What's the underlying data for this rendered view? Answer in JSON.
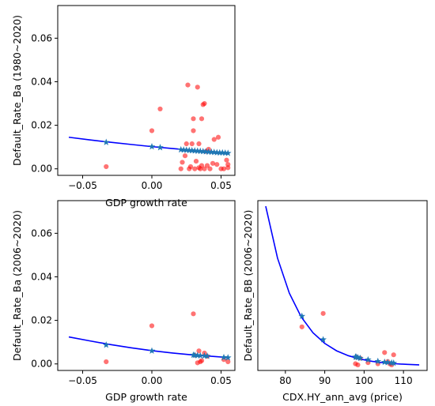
{
  "chart_data": [
    {
      "type": "scatter",
      "xlabel": "GDP growth rate",
      "ylabel": "Default_Rate_Ba (1980~2020)",
      "xlim": [
        -0.068,
        0.06
      ],
      "ylim": [
        -0.003,
        0.075
      ],
      "xticks": [
        -0.05,
        0.0,
        0.05
      ],
      "xticklabels": [
        "−0.05",
        "0.00",
        "0.05"
      ],
      "yticks": [
        0.0,
        0.02,
        0.04,
        0.06
      ],
      "yticklabels": [
        "0.00",
        "0.02",
        "0.04",
        "0.06"
      ],
      "grid": false,
      "series": [
        {
          "kind": "scatter",
          "color": "#ff0000",
          "x": [
            -0.033,
            0.0,
            0.006,
            0.021,
            0.022,
            0.024,
            0.025,
            0.026,
            0.027,
            0.028,
            0.029,
            0.03,
            0.03,
            0.031,
            0.032,
            0.033,
            0.034,
            0.034,
            0.035,
            0.036,
            0.036,
            0.037,
            0.038,
            0.038,
            0.039,
            0.04,
            0.041,
            0.042,
            0.044,
            0.045,
            0.047,
            0.048,
            0.05,
            0.052,
            0.054,
            0.055,
            0.055
          ],
          "y": [
            0.001,
            0.0175,
            0.0275,
            0.0,
            0.003,
            0.006,
            0.0115,
            0.0385,
            0.0,
            0.001,
            0.0115,
            0.023,
            0.0175,
            0.0,
            0.0035,
            0.0375,
            0.0005,
            0.0115,
            0.0,
            0.023,
            0.0015,
            0.0295,
            0.03,
            0.0,
            0.008,
            0.0015,
            0.009,
            0.0,
            0.0025,
            0.0135,
            0.002,
            0.0145,
            0.0,
            0.0,
            0.004,
            0.0005,
            0.002
          ]
        },
        {
          "kind": "line",
          "color": "#0000ff",
          "x": [
            -0.06,
            -0.045,
            -0.03,
            -0.015,
            0.0,
            0.015,
            0.03,
            0.045,
            0.056
          ],
          "y": [
            0.0145,
            0.0133,
            0.0122,
            0.0112,
            0.0102,
            0.0093,
            0.0085,
            0.0078,
            0.0072
          ]
        },
        {
          "kind": "scatter",
          "marker": "star",
          "color": "#1f77b4",
          "x": [
            -0.033,
            0.0,
            0.006,
            0.021,
            0.023,
            0.025,
            0.027,
            0.029,
            0.031,
            0.033,
            0.035,
            0.037,
            0.039,
            0.041,
            0.043,
            0.045,
            0.047,
            0.049,
            0.051,
            0.053,
            0.055
          ],
          "y": [
            0.0122,
            0.0102,
            0.0098,
            0.0088,
            0.0087,
            0.0086,
            0.0085,
            0.0084,
            0.0083,
            0.0082,
            0.0081,
            0.008,
            0.0079,
            0.0078,
            0.0077,
            0.0076,
            0.0075,
            0.0074,
            0.0074,
            0.0073,
            0.0072
          ]
        }
      ]
    },
    {
      "type": "scatter",
      "xlabel": "GDP growth rate",
      "ylabel": "Default_Rate_Ba (2006~2020)",
      "xlim": [
        -0.068,
        0.06
      ],
      "ylim": [
        -0.003,
        0.075
      ],
      "xticks": [
        -0.05,
        0.0,
        0.05
      ],
      "xticklabels": [
        "−0.05",
        "0.00",
        "0.05"
      ],
      "yticks": [
        0.0,
        0.02,
        0.04,
        0.06
      ],
      "yticklabels": [
        "0.00",
        "0.02",
        "0.04",
        "0.06"
      ],
      "grid": false,
      "series": [
        {
          "kind": "scatter",
          "color": "#ff0000",
          "x": [
            -0.033,
            0.0,
            0.03,
            0.031,
            0.033,
            0.034,
            0.035,
            0.036,
            0.038,
            0.04,
            0.052,
            0.055
          ],
          "y": [
            0.001,
            0.0175,
            0.023,
            0.004,
            0.0005,
            0.006,
            0.001,
            0.0015,
            0.005,
            0.0035,
            0.002,
            0.001
          ]
        },
        {
          "kind": "line",
          "color": "#0000ff",
          "x": [
            -0.06,
            -0.045,
            -0.03,
            -0.015,
            0.0,
            0.015,
            0.03,
            0.045,
            0.056
          ],
          "y": [
            0.0124,
            0.0106,
            0.0089,
            0.0074,
            0.0061,
            0.005,
            0.0041,
            0.0034,
            0.0029
          ]
        },
        {
          "kind": "scatter",
          "marker": "star",
          "color": "#1f77b4",
          "x": [
            -0.033,
            0.0,
            0.03,
            0.031,
            0.033,
            0.035,
            0.038,
            0.04,
            0.052,
            0.055
          ],
          "y": [
            0.0087,
            0.006,
            0.0041,
            0.004,
            0.0039,
            0.0038,
            0.0037,
            0.0036,
            0.003,
            0.0029
          ]
        }
      ]
    },
    {
      "type": "scatter",
      "xlabel": "CDX.HY_ann_avg (price)",
      "ylabel": "Default_Rate_BB (2006~2020)",
      "xlim": [
        73,
        116
      ],
      "xticks": [
        80,
        90,
        100,
        110
      ],
      "xticklabels": [
        "80",
        "90",
        "100",
        "110"
      ],
      "grid": false,
      "series": [
        {
          "kind": "scatter",
          "color": "#ff0000",
          "x": [
            84.2,
            89.6,
            97.8,
            98.0,
            98.4,
            99.0,
            101.0,
            103.5,
            105.2,
            106.0,
            107.0,
            107.5,
            106.5
          ],
          "y": [
            0.0175,
            0.0235,
            0.001,
            0.004,
            0.0005,
            0.0035,
            0.0015,
            0.001,
            0.006,
            0.002,
            0.0005,
            0.005,
            0.001
          ]
        },
        {
          "kind": "line",
          "color": "#0000ff",
          "x": [
            75,
            78,
            81,
            84,
            87,
            90,
            93,
            96,
            99,
            102,
            105,
            108,
            111,
            114
          ],
          "y": [
            0.0715,
            0.0483,
            0.0326,
            0.022,
            0.0149,
            0.0101,
            0.0068,
            0.0046,
            0.0031,
            0.0021,
            0.0014,
            0.001,
            0.0007,
            0.0005
          ]
        },
        {
          "kind": "scatter",
          "marker": "star",
          "color": "#1f77b4",
          "x": [
            84.2,
            89.6,
            97.8,
            98.0,
            98.4,
            99.0,
            101.0,
            103.5,
            105.2,
            106.0,
            107.0,
            107.5
          ],
          "y": [
            0.0223,
            0.0118,
            0.0041,
            0.004,
            0.0038,
            0.0035,
            0.0028,
            0.0021,
            0.0017,
            0.0016,
            0.0014,
            0.0013
          ]
        }
      ]
    }
  ]
}
